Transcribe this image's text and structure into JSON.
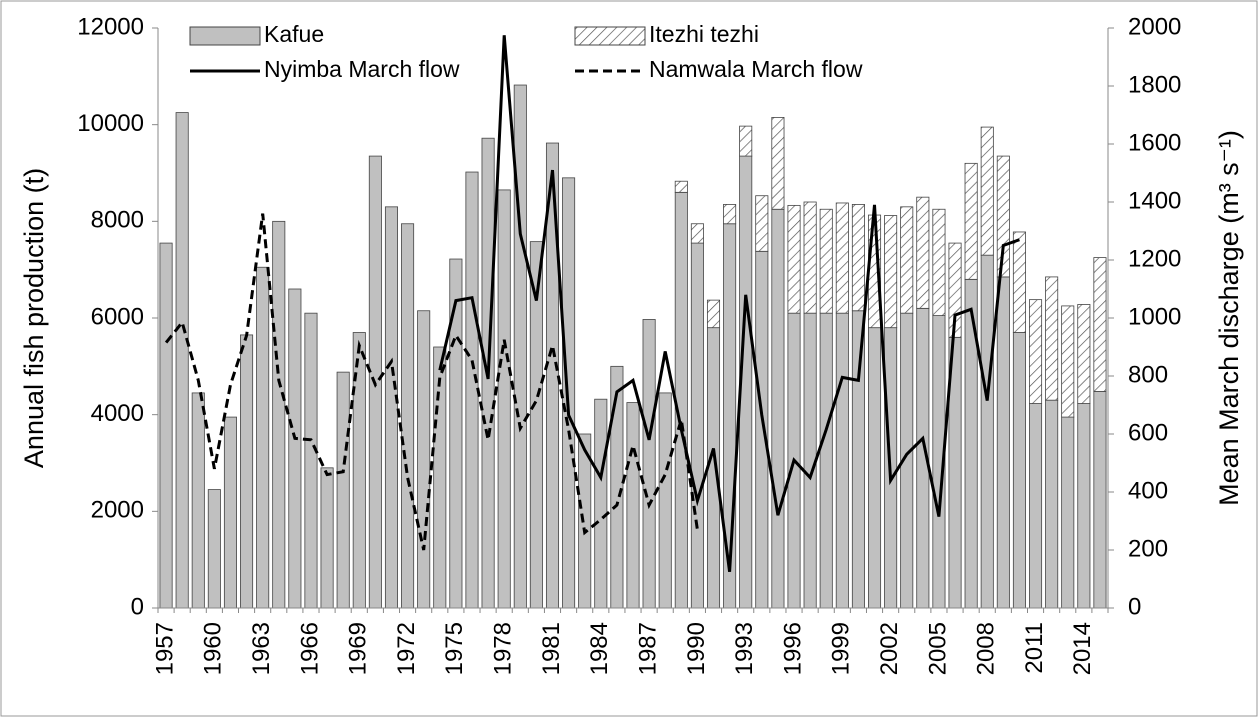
{
  "chart_data": {
    "type": "bar_line",
    "categories": [
      "1957",
      null,
      null,
      "1960",
      null,
      null,
      "1963",
      null,
      null,
      "1966",
      null,
      null,
      "1969",
      null,
      null,
      "1972",
      null,
      null,
      "1975",
      null,
      null,
      "1978",
      null,
      null,
      "1981",
      null,
      null,
      "1984",
      null,
      null,
      "1987",
      null,
      null,
      "1990",
      null,
      null,
      "1993",
      null,
      null,
      "1996",
      null,
      null,
      "1999",
      null,
      null,
      "2002",
      null,
      null,
      "2005",
      null,
      null,
      "2008",
      null,
      null,
      "2011",
      null,
      null,
      "2014",
      null
    ],
    "series": [
      {
        "name": "Kafue",
        "kind": "bar",
        "color": "#c0c0c0",
        "values": [
          7550,
          10250,
          4450,
          2450,
          3950,
          5650,
          7050,
          8000,
          6600,
          6100,
          2900,
          4880,
          5700,
          9350,
          8300,
          7950,
          6150,
          5400,
          7220,
          9020,
          9720,
          8650,
          10820,
          7580,
          9620,
          8900,
          3600,
          4320,
          5000,
          4250,
          5970,
          4450,
          8600,
          7550,
          5800,
          7950,
          9350,
          7380,
          8250,
          6100,
          6100,
          6100,
          6100,
          6150,
          5800,
          5800,
          6100,
          6200,
          6050,
          5600,
          6800,
          7300,
          6850,
          5700,
          4230,
          4300,
          3950,
          4230,
          4480
        ]
      },
      {
        "name": "Itezhi tezhi",
        "kind": "bar",
        "color": "#ffffff",
        "hatch": true,
        "values": [
          null,
          null,
          null,
          null,
          null,
          null,
          null,
          null,
          null,
          null,
          null,
          null,
          null,
          null,
          null,
          null,
          null,
          null,
          null,
          null,
          null,
          null,
          null,
          null,
          null,
          null,
          null,
          null,
          null,
          null,
          null,
          null,
          230,
          400,
          570,
          400,
          620,
          1150,
          1900,
          2230,
          2300,
          2150,
          2280,
          2200,
          2330,
          2320,
          2200,
          2300,
          2200,
          1950,
          2400,
          2650,
          2500,
          2080,
          2150,
          2550,
          2300,
          2050,
          2770
        ]
      },
      {
        "name": "Nyimba March flow",
        "kind": "line",
        "axis": "y2",
        "color": "#000000",
        "dash": false,
        "values": [
          null,
          null,
          null,
          null,
          null,
          null,
          null,
          null,
          null,
          null,
          null,
          null,
          null,
          null,
          null,
          null,
          null,
          820,
          1060,
          1070,
          790,
          1975,
          1290,
          1060,
          1510,
          665,
          545,
          450,
          745,
          785,
          580,
          885,
          615,
          370,
          550,
          125,
          1080,
          665,
          320,
          510,
          450,
          615,
          795,
          785,
          1390,
          440,
          530,
          585,
          315,
          1010,
          1030,
          715,
          1250,
          1270,
          null,
          null,
          null,
          null,
          null
        ]
      },
      {
        "name": "Namwala March flow",
        "kind": "line",
        "axis": "y2",
        "color": "#000000",
        "dash": true,
        "values": [
          915,
          985,
          785,
          480,
          770,
          940,
          1360,
          785,
          585,
          580,
          460,
          470,
          905,
          770,
          850,
          450,
          200,
          795,
          940,
          855,
          580,
          925,
          620,
          715,
          905,
          615,
          260,
          305,
          355,
          560,
          355,
          460,
          650,
          270,
          null,
          null,
          null,
          null,
          null,
          null,
          null,
          null,
          null,
          null,
          null,
          null,
          null,
          null,
          null,
          null,
          null,
          null,
          null,
          null,
          null,
          null,
          null,
          null,
          null
        ]
      }
    ],
    "ylabel": "Annual fish production (t)",
    "y2label": "Mean March discharge (m³ s⁻¹)",
    "ylim": [
      0,
      12000
    ],
    "yticks": [
      0,
      2000,
      4000,
      6000,
      8000,
      10000,
      12000
    ],
    "y2lim": [
      0,
      2000
    ],
    "y2ticks": [
      0,
      200,
      400,
      600,
      800,
      1000,
      1200,
      1400,
      1600,
      1800,
      2000
    ],
    "grid": false
  }
}
